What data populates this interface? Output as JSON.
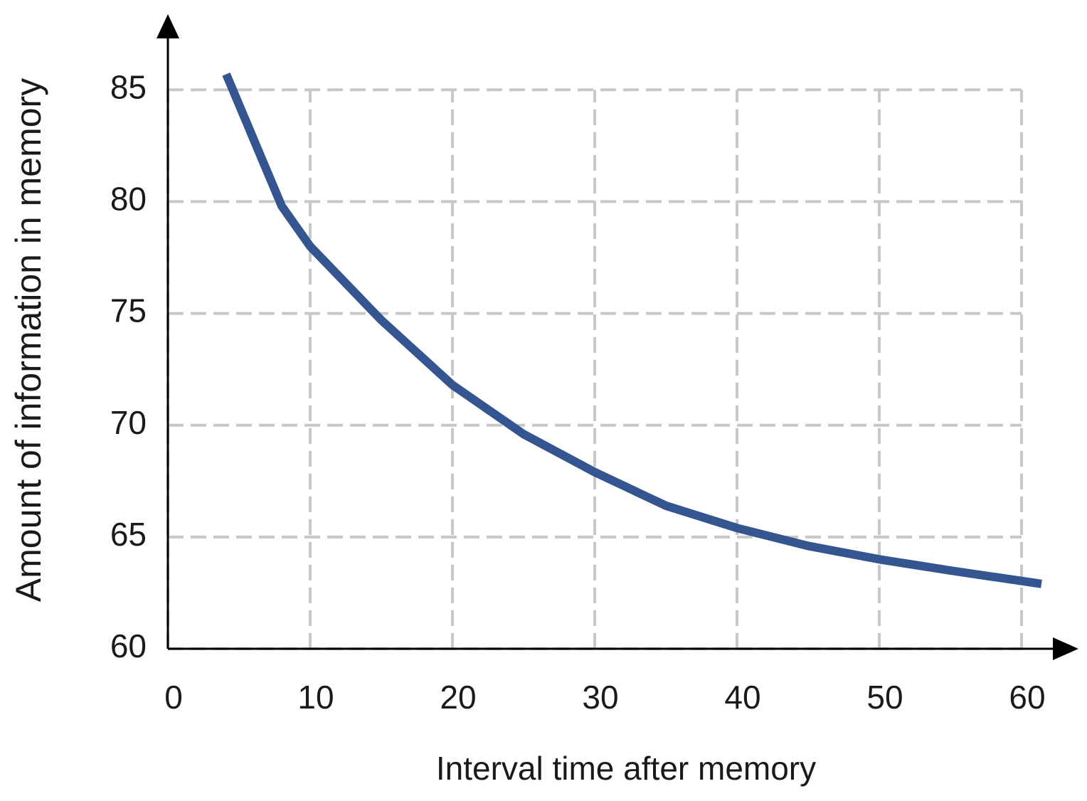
{
  "chart_data": {
    "type": "line",
    "x_label": "Interval  time after memory",
    "y_label": "Amount of information in memory",
    "series": [
      {
        "color": "#34558f",
        "x": [
          4.1,
          8,
          10,
          15,
          20,
          25,
          30,
          35,
          40,
          45,
          50,
          55,
          61.4
        ],
        "values": [
          85.7,
          79.8,
          78.0,
          74.7,
          71.8,
          69.6,
          67.9,
          66.4,
          65.4,
          64.6,
          64.0,
          63.5,
          62.9
        ]
      }
    ],
    "xlim": [
      0,
      64
    ],
    "ylim": [
      60,
      88
    ],
    "xticks": [
      0,
      10,
      20,
      30,
      40,
      50,
      60
    ],
    "yticks": [
      60,
      65,
      70,
      75,
      80,
      85
    ],
    "grid": true
  }
}
